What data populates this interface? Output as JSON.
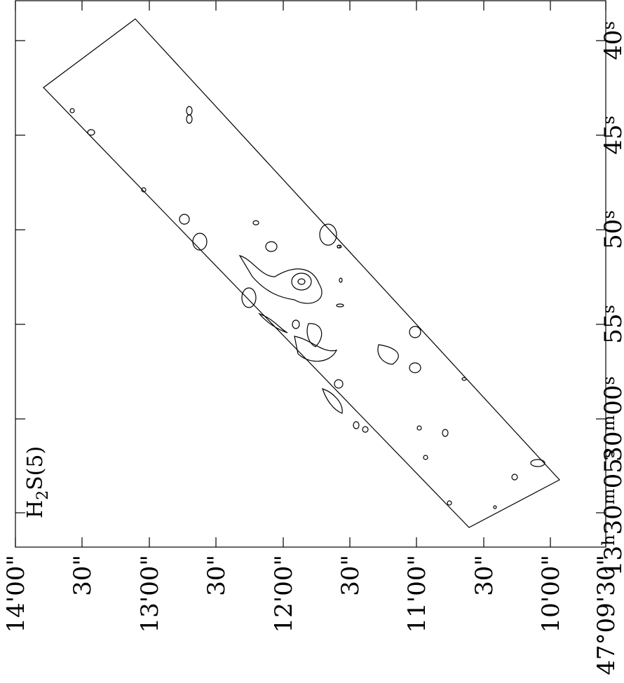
{
  "plot_label": [
    "H",
    "2",
    "S(5)"
  ],
  "right_axis": {
    "labels": [
      [
        [
          "40",
          "s"
        ]
      ],
      [
        [
          "45",
          "s"
        ]
      ],
      [
        [
          "50",
          "s"
        ]
      ],
      [
        [
          "55",
          "s"
        ]
      ],
      [
        [
          "30",
          "m"
        ],
        [
          "00",
          "s"
        ]
      ],
      [
        [
          "13",
          "h"
        ],
        [
          "30",
          "m"
        ],
        [
          "05",
          "s"
        ]
      ]
    ]
  },
  "bottom_axis": {
    "labels": [
      "14'00\"",
      "30\"",
      "13'00\"",
      "30\"",
      "12'00\"",
      "30\"",
      "11'00\"",
      "30\"",
      "10'00\"",
      "47°09'30\""
    ]
  }
}
